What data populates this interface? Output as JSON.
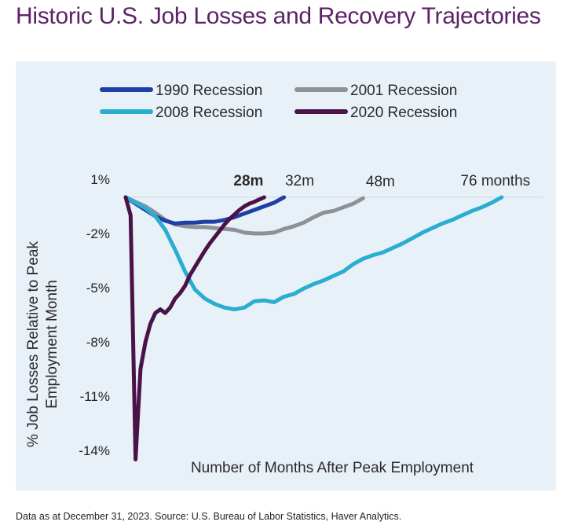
{
  "title": "Historic U.S. Job Losses and Recovery Trajectories",
  "footnote": "Data as at December 31, 2023. Source: U.S. Bureau of Labor Statistics, Haver Analytics.",
  "chart_data": {
    "type": "line",
    "title": "",
    "xlabel": "Number of Months After Peak Employment",
    "ylabel": "% Job Losses Relative to Peak Employment Month",
    "ylim": [
      -14.5,
      1
    ],
    "xlim": [
      0,
      80
    ],
    "y_ticks": [
      "1%",
      "-2%",
      "-5%",
      "-8%",
      "-11%",
      "-14%"
    ],
    "y_tick_values": [
      1,
      -2,
      -5,
      -8,
      -11,
      -14
    ],
    "zero_line": true,
    "legend_position": "top",
    "series": [
      {
        "name": "1990 Recession",
        "color": "#1f3fa6",
        "end_label": "32m",
        "end_label_bold": false,
        "x": [
          0,
          2,
          4,
          6,
          8,
          10,
          12,
          14,
          16,
          18,
          20,
          22,
          24,
          26,
          28,
          30,
          32
        ],
        "y": [
          0,
          -0.35,
          -0.7,
          -1.05,
          -1.3,
          -1.45,
          -1.4,
          -1.4,
          -1.35,
          -1.35,
          -1.25,
          -1.1,
          -0.9,
          -0.7,
          -0.5,
          -0.3,
          0
        ]
      },
      {
        "name": "2001 Recession",
        "color": "#8e9296",
        "end_label": "48m",
        "end_label_bold": false,
        "x": [
          0,
          2,
          4,
          6,
          8,
          10,
          12,
          14,
          16,
          18,
          20,
          22,
          24,
          26,
          28,
          30,
          32,
          34,
          36,
          38,
          40,
          42,
          44,
          46,
          48
        ],
        "y": [
          0,
          -0.25,
          -0.5,
          -0.85,
          -1.25,
          -1.5,
          -1.6,
          -1.65,
          -1.65,
          -1.7,
          -1.75,
          -1.8,
          -1.95,
          -2.0,
          -2.0,
          -1.95,
          -1.75,
          -1.6,
          -1.4,
          -1.1,
          -0.85,
          -0.75,
          -0.55,
          -0.35,
          -0.05
        ]
      },
      {
        "name": "2008 Recession",
        "color": "#2aaed0",
        "end_label": "76 months",
        "end_label_bold": false,
        "x": [
          0,
          2,
          4,
          6,
          8,
          10,
          12,
          14,
          16,
          18,
          20,
          22,
          24,
          26,
          28,
          30,
          32,
          34,
          36,
          38,
          40,
          42,
          44,
          46,
          48,
          50,
          52,
          54,
          56,
          58,
          60,
          62,
          64,
          66,
          68,
          70,
          72,
          74,
          76
        ],
        "y": [
          0,
          -0.3,
          -0.6,
          -1.05,
          -1.8,
          -2.9,
          -4.1,
          -5.1,
          -5.6,
          -5.9,
          -6.1,
          -6.2,
          -6.1,
          -5.75,
          -5.7,
          -5.8,
          -5.5,
          -5.35,
          -5.05,
          -4.8,
          -4.6,
          -4.35,
          -4.1,
          -3.7,
          -3.4,
          -3.2,
          -3.05,
          -2.8,
          -2.55,
          -2.25,
          -1.95,
          -1.7,
          -1.45,
          -1.25,
          -1.0,
          -0.75,
          -0.55,
          -0.3,
          0
        ]
      },
      {
        "name": "2020 Recession",
        "color": "#4a1348",
        "end_label": "28m",
        "end_label_bold": true,
        "x": [
          0,
          1,
          2,
          3,
          4,
          5,
          6,
          7,
          8,
          9,
          10,
          11,
          12,
          13,
          14,
          15,
          16,
          17,
          18,
          19,
          20,
          21,
          22,
          23,
          24,
          25,
          26,
          27,
          28
        ],
        "y": [
          0,
          -1.0,
          -14.5,
          -9.5,
          -8.0,
          -7.0,
          -6.4,
          -6.2,
          -6.4,
          -6.1,
          -5.6,
          -5.3,
          -4.9,
          -4.3,
          -3.85,
          -3.4,
          -2.95,
          -2.55,
          -2.2,
          -1.85,
          -1.5,
          -1.2,
          -0.95,
          -0.7,
          -0.5,
          -0.35,
          -0.25,
          -0.12,
          0
        ]
      }
    ]
  }
}
